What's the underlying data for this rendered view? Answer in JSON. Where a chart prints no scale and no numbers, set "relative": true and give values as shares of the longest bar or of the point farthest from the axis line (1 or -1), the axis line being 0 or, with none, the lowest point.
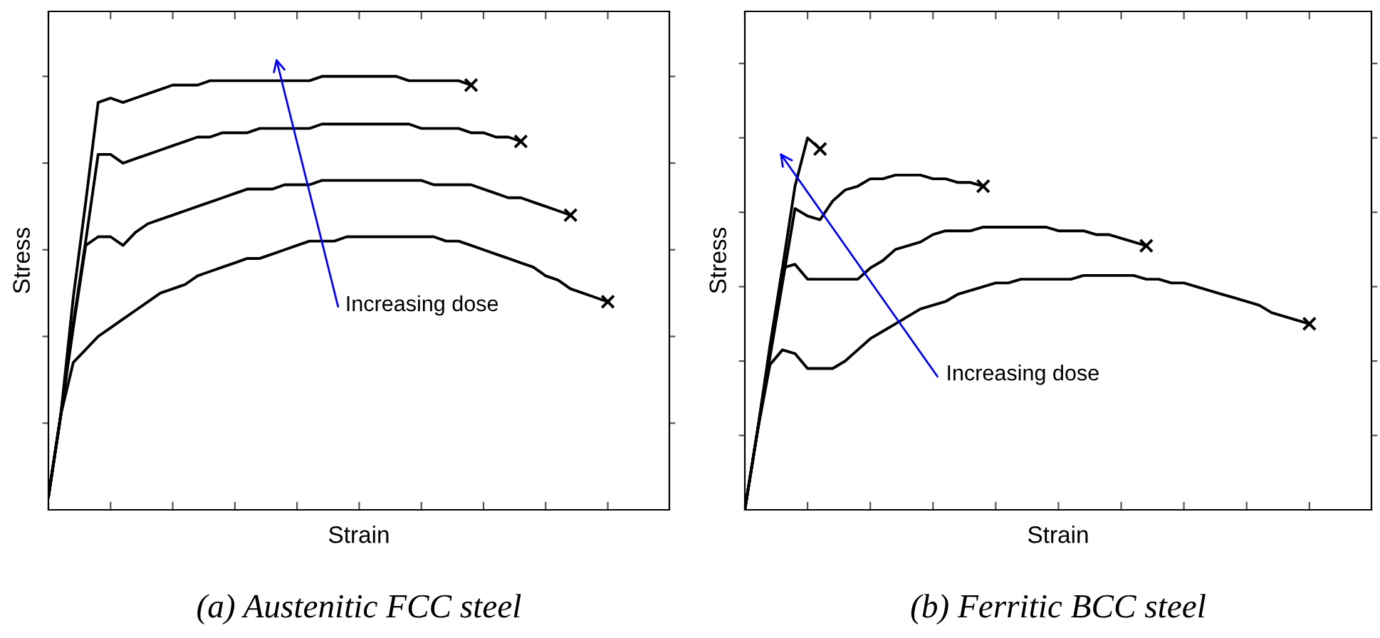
{
  "chart_data": [
    {
      "type": "line",
      "title": "(a) Austenitic FCC steel",
      "xlabel": "Strain",
      "ylabel": "Stress",
      "relative": true,
      "tick_labels": false,
      "annotations": [
        "Increasing dose"
      ],
      "categories": [
        null,
        null,
        null,
        null,
        null,
        null,
        null,
        null,
        null,
        null,
        null,
        null,
        null,
        null,
        null,
        null,
        null,
        null,
        null,
        null,
        null,
        null,
        null,
        null,
        null,
        null,
        null,
        null,
        null,
        null,
        null,
        null,
        null,
        null,
        null,
        null,
        null,
        null,
        null,
        null,
        null,
        null,
        null,
        null,
        null,
        null
      ],
      "series": [
        {
          "color": "#000000",
          "values": [
            0.03,
            0.22,
            0.49,
            0.71,
            0.94,
            0.95,
            0.94,
            0.95,
            0.96,
            0.97,
            0.98,
            0.98,
            0.98,
            0.99,
            0.99,
            0.99,
            0.99,
            0.99,
            0.99,
            0.99,
            0.99,
            0.99,
            1.0,
            1.0,
            1.0,
            1.0,
            1.0,
            1.0,
            1.0,
            0.99,
            0.99,
            0.99,
            0.99,
            0.99,
            0.98,
            null,
            null,
            null,
            null,
            null,
            null,
            null,
            null,
            null,
            null,
            null
          ]
        },
        {
          "color": "#000000",
          "values": [
            0.03,
            0.22,
            0.43,
            0.62,
            0.82,
            0.82,
            0.8,
            0.81,
            0.82,
            0.83,
            0.84,
            0.85,
            0.86,
            0.86,
            0.87,
            0.87,
            0.87,
            0.88,
            0.88,
            0.88,
            0.88,
            0.88,
            0.89,
            0.89,
            0.89,
            0.89,
            0.89,
            0.89,
            0.89,
            0.89,
            0.88,
            0.88,
            0.88,
            0.88,
            0.87,
            0.87,
            0.86,
            0.86,
            0.85,
            null,
            null,
            null,
            null,
            null,
            null,
            null
          ]
        },
        {
          "color": "#000000",
          "values": [
            0.03,
            0.22,
            0.42,
            0.61,
            0.63,
            0.63,
            0.61,
            0.64,
            0.66,
            0.67,
            0.68,
            0.69,
            0.7,
            0.71,
            0.72,
            0.73,
            0.74,
            0.74,
            0.74,
            0.75,
            0.75,
            0.75,
            0.76,
            0.76,
            0.76,
            0.76,
            0.76,
            0.76,
            0.76,
            0.76,
            0.76,
            0.75,
            0.75,
            0.75,
            0.75,
            0.74,
            0.73,
            0.72,
            0.72,
            0.71,
            0.7,
            0.69,
            0.68,
            null,
            null,
            null
          ]
        },
        {
          "color": "#000000",
          "values": [
            0.03,
            0.22,
            0.34,
            0.37,
            0.4,
            0.42,
            0.44,
            0.46,
            0.48,
            0.5,
            0.51,
            0.52,
            0.54,
            0.55,
            0.56,
            0.57,
            0.58,
            0.58,
            0.59,
            0.6,
            0.61,
            0.62,
            0.62,
            0.62,
            0.63,
            0.63,
            0.63,
            0.63,
            0.63,
            0.63,
            0.63,
            0.63,
            0.62,
            0.62,
            0.61,
            0.6,
            0.59,
            0.58,
            0.57,
            0.56,
            0.54,
            0.53,
            0.51,
            0.5,
            0.49,
            0.48
          ]
        }
      ]
    },
    {
      "type": "line",
      "title": "(b) Ferritic BCC steel",
      "xlabel": "Strain",
      "ylabel": "Stress",
      "relative": true,
      "tick_labels": false,
      "annotations": [
        "Increasing dose"
      ],
      "categories": [
        null,
        null,
        null,
        null,
        null,
        null,
        null,
        null,
        null,
        null,
        null,
        null,
        null,
        null,
        null,
        null,
        null,
        null,
        null,
        null,
        null,
        null,
        null,
        null,
        null,
        null,
        null,
        null,
        null,
        null,
        null,
        null,
        null,
        null,
        null,
        null,
        null,
        null,
        null,
        null,
        null,
        null,
        null,
        null,
        null,
        null
      ],
      "series": [
        {
          "color": "#000000",
          "values": [
            0,
            0.21,
            0.44,
            0.65,
            0.87,
            1.0,
            0.97,
            null,
            null,
            null,
            null,
            null,
            null,
            null,
            null,
            null,
            null,
            null,
            null,
            null,
            null,
            null,
            null,
            null,
            null,
            null,
            null,
            null,
            null,
            null,
            null,
            null,
            null,
            null,
            null,
            null,
            null,
            null,
            null,
            null,
            null,
            null,
            null,
            null,
            null,
            null
          ]
        },
        {
          "color": "#000000",
          "values": [
            0,
            0.21,
            0.41,
            0.61,
            0.81,
            0.79,
            0.78,
            0.83,
            0.86,
            0.87,
            0.89,
            0.89,
            0.9,
            0.9,
            0.9,
            0.89,
            0.89,
            0.88,
            0.88,
            0.87,
            null,
            null,
            null,
            null,
            null,
            null,
            null,
            null,
            null,
            null,
            null,
            null,
            null,
            null,
            null,
            null,
            null,
            null,
            null,
            null,
            null,
            null,
            null,
            null,
            null,
            null
          ]
        },
        {
          "color": "#000000",
          "values": [
            0,
            0.21,
            0.43,
            0.65,
            0.66,
            0.62,
            0.62,
            0.62,
            0.62,
            0.62,
            0.65,
            0.67,
            0.7,
            0.71,
            0.72,
            0.74,
            0.75,
            0.75,
            0.75,
            0.76,
            0.76,
            0.76,
            0.76,
            0.76,
            0.76,
            0.75,
            0.75,
            0.75,
            0.74,
            0.74,
            0.73,
            0.72,
            0.71,
            null,
            null,
            null,
            null,
            null,
            null,
            null,
            null,
            null,
            null,
            null,
            null,
            null
          ]
        },
        {
          "color": "#000000",
          "values": [
            0,
            0.21,
            0.39,
            0.43,
            0.42,
            0.38,
            0.38,
            0.38,
            0.4,
            0.43,
            0.46,
            0.48,
            0.5,
            0.52,
            0.54,
            0.55,
            0.56,
            0.58,
            0.59,
            0.6,
            0.61,
            0.61,
            0.62,
            0.62,
            0.62,
            0.62,
            0.62,
            0.63,
            0.63,
            0.63,
            0.63,
            0.63,
            0.62,
            0.62,
            0.61,
            0.61,
            0.6,
            0.59,
            0.58,
            0.57,
            0.56,
            0.55,
            0.53,
            0.52,
            0.51,
            0.5
          ]
        }
      ]
    }
  ]
}
